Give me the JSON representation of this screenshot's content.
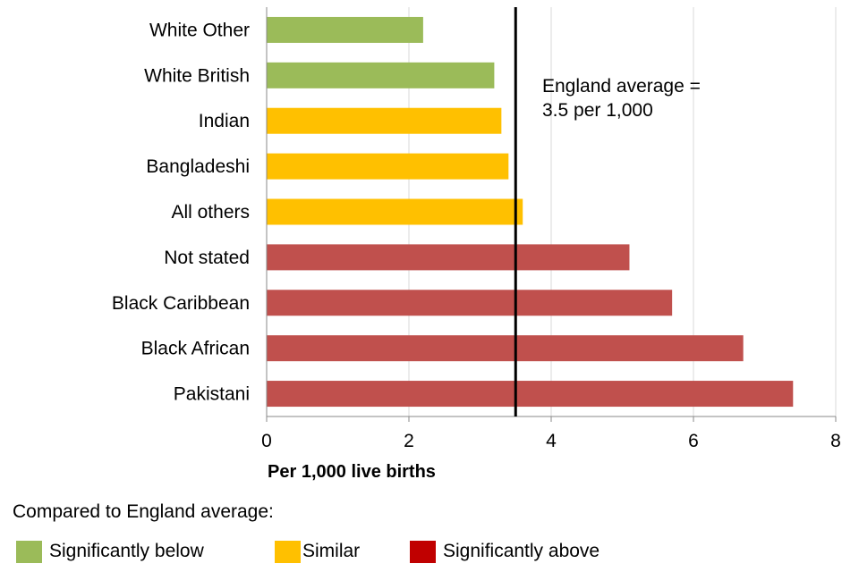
{
  "chart_data": {
    "type": "bar",
    "orientation": "horizontal",
    "categories": [
      "White Other",
      "White British",
      "Indian",
      "Bangladeshi",
      "All others",
      "Not stated",
      "Black Caribbean",
      "Black African",
      "Pakistani"
    ],
    "values": [
      2.2,
      3.2,
      3.3,
      3.4,
      3.6,
      5.1,
      5.7,
      6.7,
      7.4
    ],
    "groups": [
      "below",
      "below",
      "similar",
      "similar",
      "similar",
      "above",
      "above",
      "above",
      "above"
    ],
    "xlabel": "Per 1,000 live births",
    "xlim": [
      0,
      8
    ],
    "xticks": [
      0,
      2,
      4,
      6,
      8
    ],
    "grid": true,
    "reference_line": {
      "value": 3.5,
      "label_line1": "England average =",
      "label_line2": "3.5 per 1,000"
    },
    "legend": {
      "title": "Compared to England average:",
      "items": [
        {
          "key": "below",
          "label": "Significantly below",
          "color": "#9bbb59"
        },
        {
          "key": "similar",
          "label": "Similar",
          "color": "#ffc000"
        },
        {
          "key": "above",
          "label": "Significantly above",
          "color": "#c0504d"
        }
      ]
    }
  }
}
